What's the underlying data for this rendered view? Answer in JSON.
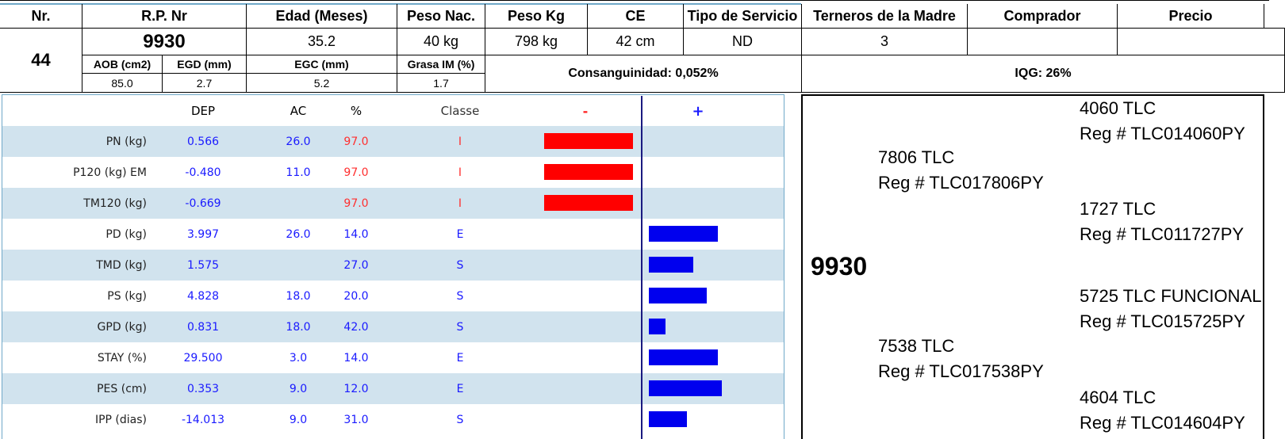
{
  "header": {
    "labels": {
      "nr": "Nr.",
      "rp": "R.P. Nr",
      "edad": "Edad (Meses)",
      "peso_nac": "Peso Nac.",
      "peso_kg": "Peso Kg",
      "ce": "CE",
      "tipo": "Tipo de Servicio",
      "terneros": "Terneros de la Madre",
      "comprador": "Comprador",
      "precio": "Precio"
    },
    "values": {
      "nr": "44",
      "rp": "9930",
      "edad": "35.2",
      "peso_nac": "40 kg",
      "peso_kg": "798 kg",
      "ce": "42 cm",
      "tipo": "ND",
      "terneros": "3",
      "comprador": "",
      "precio": ""
    },
    "sub_labels": {
      "aob": "AOB (cm2)",
      "egd": "EGD (mm)",
      "egc": "EGC (mm)",
      "grasa": "Grasa IM (%)"
    },
    "sub_values": {
      "aob": "85.0",
      "egd": "2.7",
      "egc": "5.2",
      "grasa": "1.7"
    },
    "consanguinidad": "Consanguinidad: 0,052%",
    "iqg": "IQG: 26%"
  },
  "dep_table": {
    "columns": {
      "dep": "DEP",
      "ac": "AC",
      "pct": "%",
      "classe": "Classe",
      "minus": "-",
      "plus": "+"
    },
    "colors": {
      "row_shade": "#d1e3ee",
      "negative_bar": "#ff0000",
      "positive_bar": "#0000ee",
      "axis": "#1a1a80"
    },
    "rows": [
      {
        "trait": "PN (kg)",
        "dep": "0.566",
        "ac": "26.0",
        "pct": "97.0",
        "classe": "I",
        "direction": "minus",
        "bar_fraction": 0.8
      },
      {
        "trait": "P120 (kg) EM",
        "dep": "-0.480",
        "ac": "11.0",
        "pct": "97.0",
        "classe": "I",
        "direction": "minus",
        "bar_fraction": 0.8
      },
      {
        "trait": "TM120 (kg)",
        "dep": "-0.669",
        "ac": "",
        "pct": "97.0",
        "classe": "I",
        "direction": "minus",
        "bar_fraction": 0.8
      },
      {
        "trait": "PD (kg)",
        "dep": "3.997",
        "ac": "26.0",
        "pct": "14.0",
        "classe": "E",
        "direction": "plus",
        "bar_fraction": 0.62
      },
      {
        "trait": "TMD (kg)",
        "dep": "1.575",
        "ac": "",
        "pct": "27.0",
        "classe": "S",
        "direction": "plus",
        "bar_fraction": 0.4
      },
      {
        "trait": "PS (kg)",
        "dep": "4.828",
        "ac": "18.0",
        "pct": "20.0",
        "classe": "S",
        "direction": "plus",
        "bar_fraction": 0.52
      },
      {
        "trait": "GPD (kg)",
        "dep": "0.831",
        "ac": "18.0",
        "pct": "42.0",
        "classe": "S",
        "direction": "plus",
        "bar_fraction": 0.15
      },
      {
        "trait": "STAY (%)",
        "dep": "29.500",
        "ac": "3.0",
        "pct": "14.0",
        "classe": "E",
        "direction": "plus",
        "bar_fraction": 0.62
      },
      {
        "trait": "PES (cm)",
        "dep": "0.353",
        "ac": "9.0",
        "pct": "12.0",
        "classe": "E",
        "direction": "plus",
        "bar_fraction": 0.66
      },
      {
        "trait": "IPP (dias)",
        "dep": "-14.013",
        "ac": "9.0",
        "pct": "31.0",
        "classe": "S",
        "direction": "plus",
        "bar_fraction": 0.34
      }
    ]
  },
  "pedigree": {
    "animal": "9930",
    "sire": {
      "name": "7806 TLC",
      "reg": "Reg # TLC017806PY"
    },
    "sire_sire": {
      "name": "4060 TLC",
      "reg": "Reg # TLC014060PY"
    },
    "sire_dam": {
      "name": "1727 TLC",
      "reg": "Reg # TLC011727PY"
    },
    "dam": {
      "name": "7538 TLC",
      "reg": "Reg # TLC017538PY"
    },
    "dam_sire": {
      "name": "5725 TLC FUNCIONAL",
      "reg": "Reg # TLC015725PY"
    },
    "dam_dam": {
      "name": "4604 TLC",
      "reg": "Reg # TLC014604PY"
    }
  }
}
